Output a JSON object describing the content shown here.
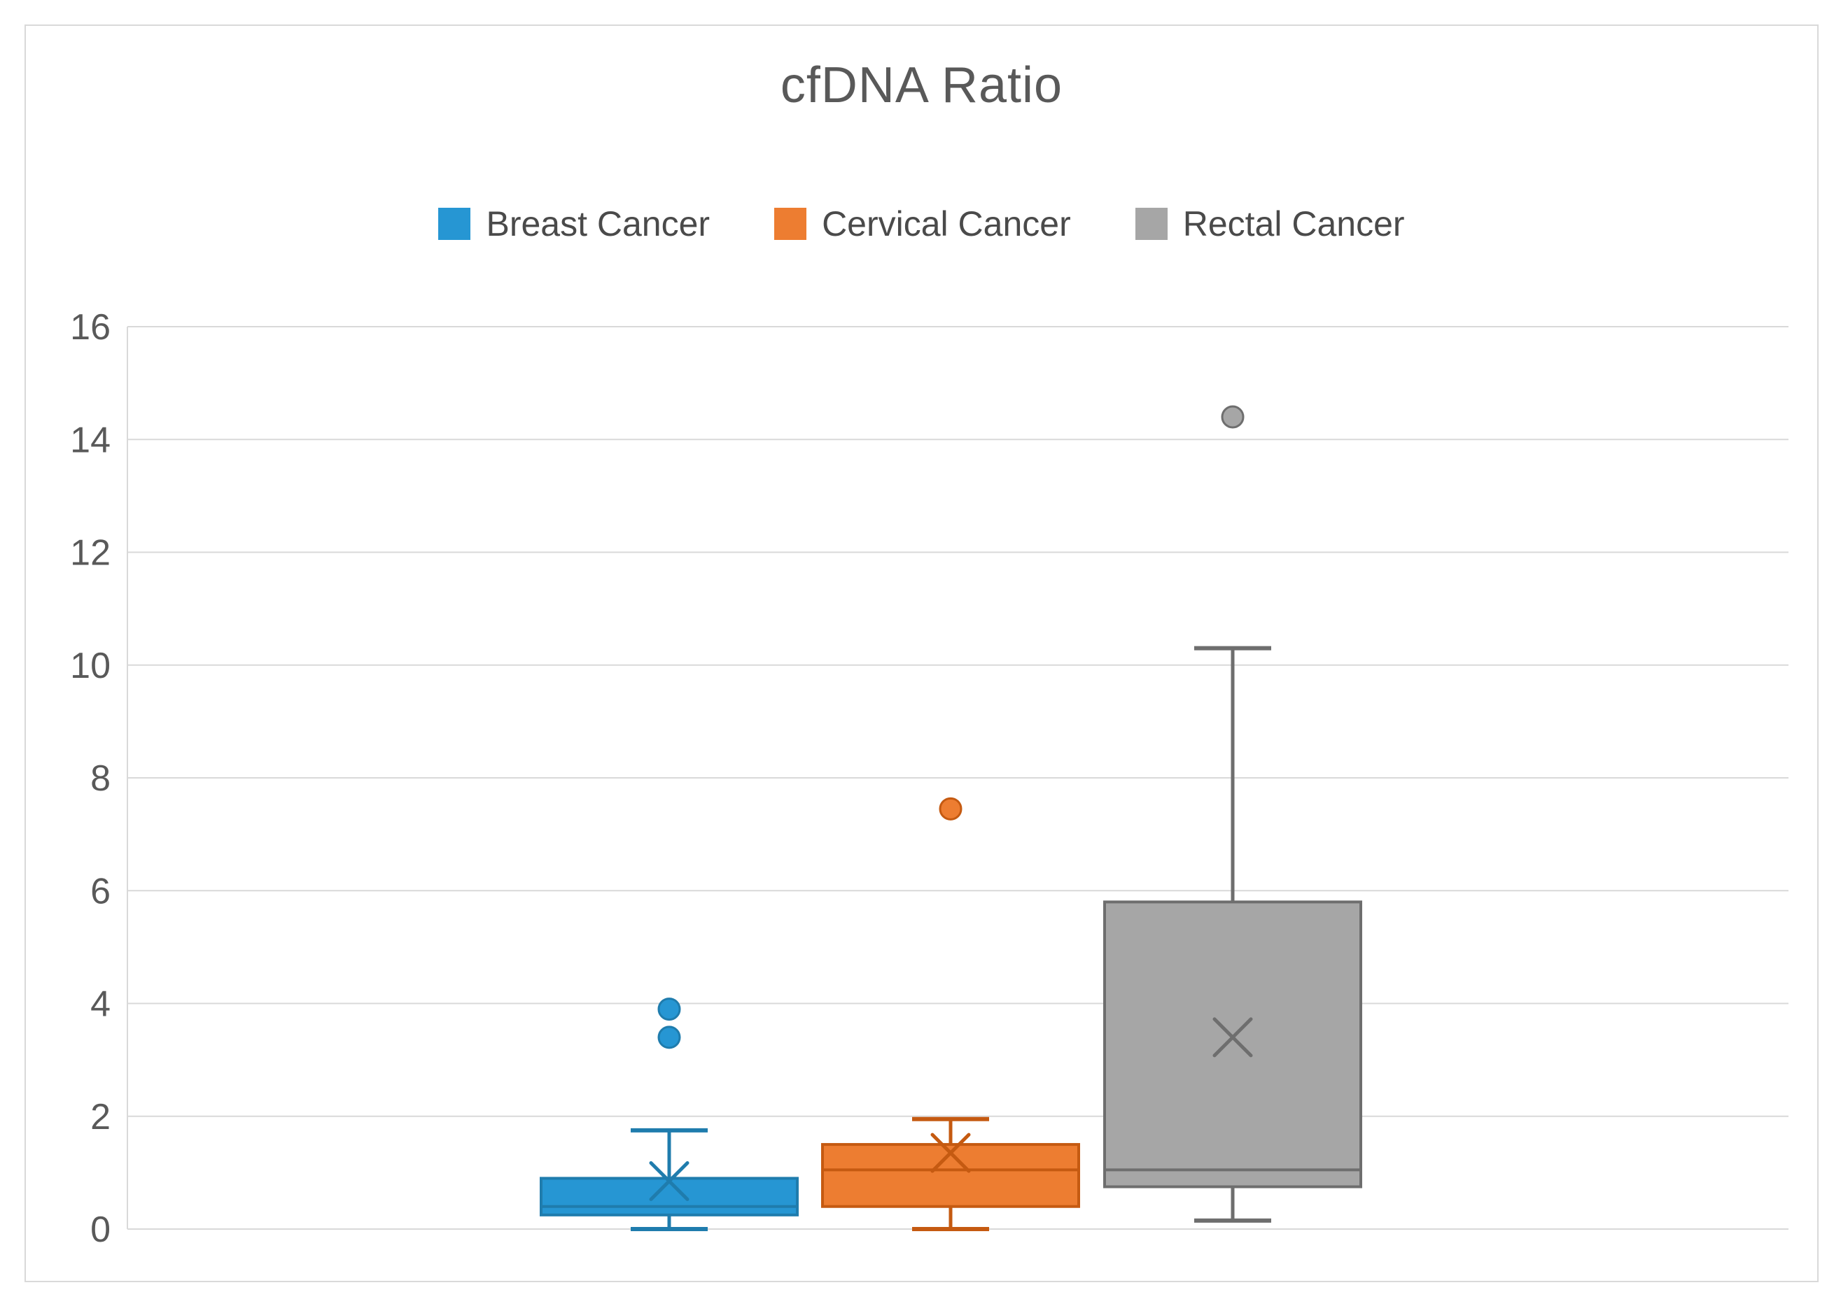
{
  "title": "cfDNA Ratio",
  "legend": {
    "items": [
      "Breast Cancer",
      "Cervical Cancer",
      "Rectal Cancer"
    ]
  },
  "colors": {
    "grid": "#D9D9D9",
    "axis_text": "#595959",
    "title_text": "#595959",
    "frame_border": "#D9D9D9"
  },
  "chart_data": {
    "type": "boxplot",
    "title": "cfDNA Ratio",
    "categories": [
      "Breast Cancer",
      "Cervical Cancer",
      "Rectal Cancer"
    ],
    "grid": true,
    "legend_position": "top",
    "y_axis": {
      "min": 0,
      "max": 16,
      "tick_step": 2,
      "tick_labels": [
        "0",
        "2",
        "4",
        "6",
        "8",
        "10",
        "12",
        "14",
        "16"
      ]
    },
    "series": [
      {
        "name": "Breast Cancer",
        "fill": "#2696D3",
        "stroke": "#1F7CAD",
        "whisker_low": 0.0,
        "q1": 0.25,
        "median": 0.4,
        "q3": 0.9,
        "whisker_high": 1.75,
        "mean": 0.85,
        "outliers": [
          3.4,
          3.9
        ]
      },
      {
        "name": "Cervical Cancer",
        "fill": "#ED7D31",
        "stroke": "#C55A11",
        "whisker_low": 0.0,
        "q1": 0.4,
        "median": 1.05,
        "q3": 1.5,
        "whisker_high": 1.95,
        "mean": 1.35,
        "outliers": [
          7.45
        ]
      },
      {
        "name": "Rectal Cancer",
        "fill": "#A6A6A6",
        "stroke": "#6E6E6E",
        "whisker_low": 0.15,
        "q1": 0.75,
        "median": 1.05,
        "q3": 5.8,
        "whisker_high": 10.3,
        "mean": 3.4,
        "outliers": [
          14.4
        ]
      }
    ]
  }
}
